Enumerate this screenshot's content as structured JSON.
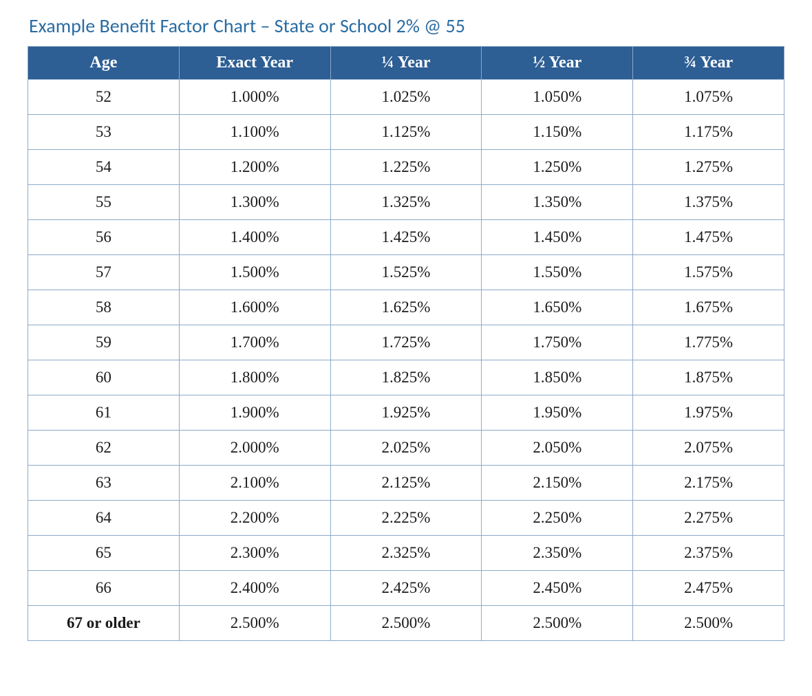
{
  "title": "Example Benefit Factor Chart – State or School 2% @ 55",
  "table": {
    "type": "table",
    "header_bg_color": "#2d5e94",
    "header_text_color": "#ffffff",
    "border_color": "#8ca9c9",
    "cell_bg_color": "#ffffff",
    "cell_text_color": "#1a1a1a",
    "title_color": "#2a6ca2",
    "title_fontsize": 28,
    "header_fontsize": 24,
    "cell_fontsize": 23,
    "columns": [
      "Age",
      "Exact Year",
      "¼ Year",
      "½ Year",
      "¾ Year"
    ],
    "rows": [
      [
        "52",
        "1.000%",
        "1.025%",
        "1.050%",
        "1.075%"
      ],
      [
        "53",
        "1.100%",
        "1.125%",
        "1.150%",
        "1.175%"
      ],
      [
        "54",
        "1.200%",
        "1.225%",
        "1.250%",
        "1.275%"
      ],
      [
        "55",
        "1.300%",
        "1.325%",
        "1.350%",
        "1.375%"
      ],
      [
        "56",
        "1.400%",
        "1.425%",
        "1.450%",
        "1.475%"
      ],
      [
        "57",
        "1.500%",
        "1.525%",
        "1.550%",
        "1.575%"
      ],
      [
        "58",
        "1.600%",
        "1.625%",
        "1.650%",
        "1.675%"
      ],
      [
        "59",
        "1.700%",
        "1.725%",
        "1.750%",
        "1.775%"
      ],
      [
        "60",
        "1.800%",
        "1.825%",
        "1.850%",
        "1.875%"
      ],
      [
        "61",
        "1.900%",
        "1.925%",
        "1.950%",
        "1.975%"
      ],
      [
        "62",
        "2.000%",
        "2.025%",
        "2.050%",
        "2.075%"
      ],
      [
        "63",
        "2.100%",
        "2.125%",
        "2.150%",
        "2.175%"
      ],
      [
        "64",
        "2.200%",
        "2.225%",
        "2.250%",
        "2.275%"
      ],
      [
        "65",
        "2.300%",
        "2.325%",
        "2.350%",
        "2.375%"
      ],
      [
        "66",
        "2.400%",
        "2.425%",
        "2.450%",
        "2.475%"
      ],
      [
        "67 or older",
        "2.500%",
        "2.500%",
        "2.500%",
        "2.500%"
      ]
    ]
  }
}
